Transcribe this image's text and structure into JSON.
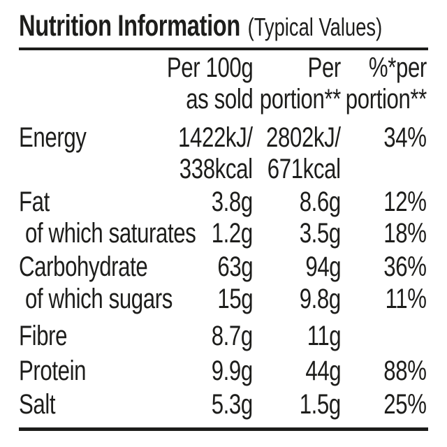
{
  "title": {
    "main": "Nutrition Information",
    "suffix": "(Typical Values)"
  },
  "columns": {
    "per_100g": "Per 100g\nas sold",
    "per_portion": "Per\nportion**",
    "pct_per_portion": "%*per\nportion**"
  },
  "rows": [
    {
      "label": "Energy",
      "per_100g": "1422kJ/\n338kcal",
      "per_portion": "2802kJ/\n671kcal",
      "pct": "34%"
    },
    {
      "label": "Fat",
      "per_100g": "3.8g",
      "per_portion": "8.6g",
      "pct": "12%"
    },
    {
      "label": "of which saturates",
      "per_100g": "1.2g",
      "per_portion": "3.5g",
      "pct": "18%"
    },
    {
      "label": "Carbohydrate",
      "per_100g": "63g",
      "per_portion": "94g",
      "pct": "36%"
    },
    {
      "label": "of which sugars",
      "per_100g": "15g",
      "per_portion": "9.8g",
      "pct": "11%"
    },
    {
      "label": "Fibre",
      "per_100g": "8.7g",
      "per_portion": "11g",
      "pct": ""
    },
    {
      "label": "Protein",
      "per_100g": "9.9g",
      "per_portion": "44g",
      "pct": "88%"
    },
    {
      "label": "Salt",
      "per_100g": "5.3g",
      "per_portion": "1.5g",
      "pct": "25%"
    }
  ],
  "colors": {
    "text": "#1d1d1b",
    "background": "#ffffff"
  }
}
